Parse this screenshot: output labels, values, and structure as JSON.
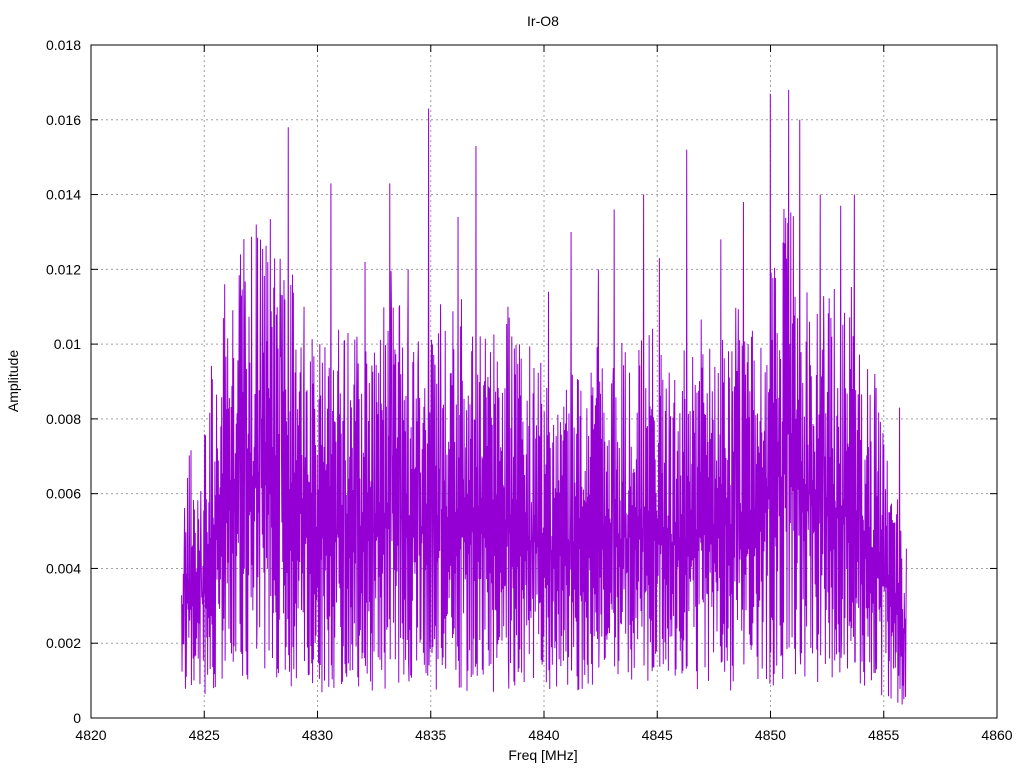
{
  "chart_data": {
    "type": "line",
    "title": "Ir-O8",
    "xlabel": "Freq [MHz]",
    "ylabel": "Amplitude",
    "xlim": [
      4820,
      4860
    ],
    "ylim": [
      0,
      0.018
    ],
    "x_ticks": [
      "4820",
      "4825",
      "4830",
      "4835",
      "4840",
      "4845",
      "4850",
      "4855",
      "4860"
    ],
    "y_ticks": [
      "0",
      "0.002",
      "0.004",
      "0.006",
      "0.008",
      "0.01",
      "0.012",
      "0.014",
      "0.016",
      "0.018"
    ],
    "grid": true,
    "series": [
      {
        "color": "#9400d3",
        "x_start": 4824.0,
        "x_end": 4856.0,
        "anchors": [
          [
            4824.0,
            0.0025
          ],
          [
            4824.4,
            0.0042
          ],
          [
            4824.8,
            0.0035
          ],
          [
            4825.2,
            0.005
          ],
          [
            4825.6,
            0.0058
          ],
          [
            4826.0,
            0.0062
          ],
          [
            4826.5,
            0.007
          ],
          [
            4827.0,
            0.0073
          ],
          [
            4827.5,
            0.0075
          ],
          [
            4828.0,
            0.0074
          ],
          [
            4828.5,
            0.0068
          ],
          [
            4829.0,
            0.0066
          ],
          [
            4829.5,
            0.006
          ],
          [
            4830.0,
            0.0057
          ],
          [
            4830.5,
            0.0056
          ],
          [
            4831.0,
            0.0058
          ],
          [
            4831.5,
            0.0057
          ],
          [
            4832.0,
            0.0055
          ],
          [
            4832.5,
            0.0058
          ],
          [
            4833.0,
            0.0062
          ],
          [
            4833.5,
            0.0064
          ],
          [
            4834.0,
            0.006
          ],
          [
            4834.5,
            0.0058
          ],
          [
            4835.0,
            0.0056
          ],
          [
            4835.5,
            0.006
          ],
          [
            4836.0,
            0.0062
          ],
          [
            4836.5,
            0.006
          ],
          [
            4837.0,
            0.0058
          ],
          [
            4837.5,
            0.0057
          ],
          [
            4838.0,
            0.0058
          ],
          [
            4838.5,
            0.006
          ],
          [
            4839.0,
            0.0058
          ],
          [
            4839.5,
            0.0055
          ],
          [
            4840.0,
            0.0052
          ],
          [
            4840.5,
            0.005
          ],
          [
            4841.0,
            0.005
          ],
          [
            4841.5,
            0.0052
          ],
          [
            4842.0,
            0.0054
          ],
          [
            4842.5,
            0.0054
          ],
          [
            4843.0,
            0.0055
          ],
          [
            4843.5,
            0.0056
          ],
          [
            4844.0,
            0.0057
          ],
          [
            4844.5,
            0.0056
          ],
          [
            4845.0,
            0.0055
          ],
          [
            4845.5,
            0.0054
          ],
          [
            4846.0,
            0.0054
          ],
          [
            4846.5,
            0.0056
          ],
          [
            4847.0,
            0.0058
          ],
          [
            4847.5,
            0.0058
          ],
          [
            4848.0,
            0.006
          ],
          [
            4848.5,
            0.0058
          ],
          [
            4849.0,
            0.0057
          ],
          [
            4849.5,
            0.0062
          ],
          [
            4850.0,
            0.007
          ],
          [
            4850.5,
            0.0076
          ],
          [
            4851.0,
            0.0075
          ],
          [
            4851.5,
            0.007
          ],
          [
            4852.0,
            0.0068
          ],
          [
            4852.5,
            0.0066
          ],
          [
            4853.0,
            0.0065
          ],
          [
            4853.5,
            0.0062
          ],
          [
            4854.0,
            0.0056
          ],
          [
            4854.5,
            0.005
          ],
          [
            4855.0,
            0.0042
          ],
          [
            4855.5,
            0.0036
          ],
          [
            4856.0,
            0.0025
          ]
        ],
        "peaks": [
          [
            4825.9,
            0.0116
          ],
          [
            4826.6,
            0.0124
          ],
          [
            4827.3,
            0.0132
          ],
          [
            4828.7,
            0.0158
          ],
          [
            4829.4,
            0.011
          ],
          [
            4830.1,
            0.01
          ],
          [
            4830.6,
            0.0143
          ],
          [
            4831.2,
            0.0101
          ],
          [
            4832.1,
            0.0122
          ],
          [
            4833.2,
            0.0143
          ],
          [
            4834.0,
            0.012
          ],
          [
            4834.9,
            0.0163
          ],
          [
            4836.2,
            0.0134
          ],
          [
            4837.0,
            0.0153
          ],
          [
            4838.4,
            0.011
          ],
          [
            4840.2,
            0.0114
          ],
          [
            4841.2,
            0.013
          ],
          [
            4842.4,
            0.012
          ],
          [
            4843.1,
            0.0136
          ],
          [
            4844.4,
            0.014
          ],
          [
            4845.1,
            0.0123
          ],
          [
            4846.3,
            0.0152
          ],
          [
            4847.8,
            0.0128
          ],
          [
            4848.8,
            0.0138
          ],
          [
            4850.0,
            0.0167
          ],
          [
            4850.8,
            0.0168
          ],
          [
            4851.3,
            0.016
          ],
          [
            4852.2,
            0.014
          ],
          [
            4853.1,
            0.0137
          ],
          [
            4853.7,
            0.014
          ],
          [
            4854.6,
            0.0092
          ],
          [
            4855.7,
            0.0083
          ]
        ],
        "min_y": 0.0003
      }
    ]
  }
}
